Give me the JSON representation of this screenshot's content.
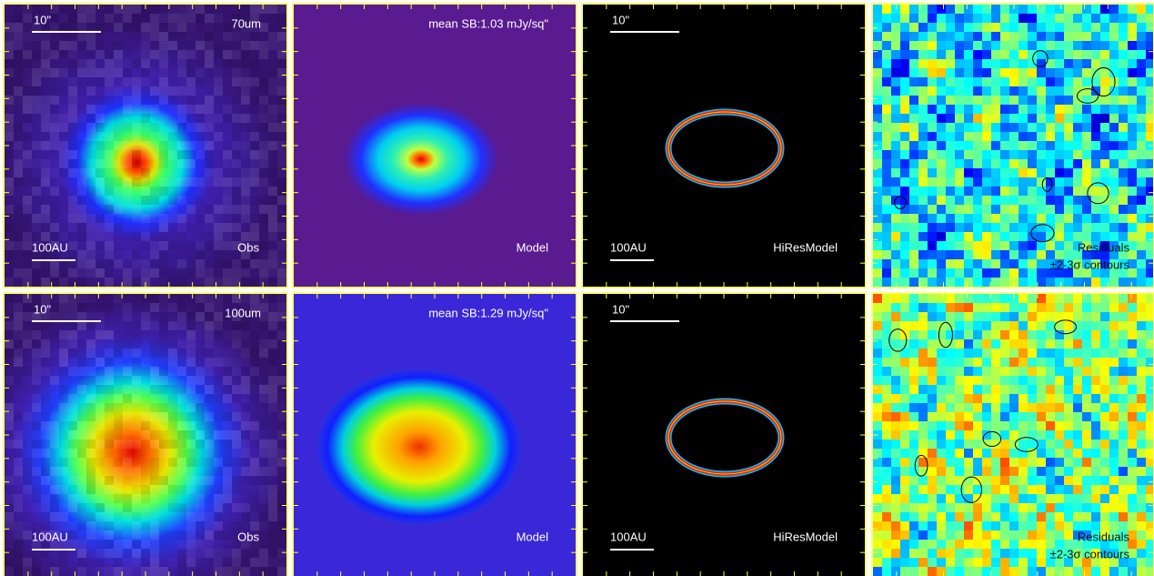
{
  "rows": [
    {
      "band": "70um",
      "scale_arcsec": "10\"",
      "scale_au": "100AU",
      "obs_label": "Obs",
      "mean_sb": "mean SB:1.03 mJy/sq\"",
      "model_label": "Model",
      "hires_scale_arcsec": "10\"",
      "hires_scale_au": "100AU",
      "hires_label": "HiResModel",
      "residuals_label": "Residuals",
      "contours_label": "±2-3σ contours"
    },
    {
      "band": "100um",
      "scale_arcsec": "10\"",
      "scale_au": "100AU",
      "obs_label": "Obs",
      "mean_sb": "mean SB:1.29 mJy/sq\"",
      "model_label": "Model",
      "hires_scale_arcsec": "10\"",
      "hires_scale_au": "100AU",
      "hires_label": "HiResModel",
      "residuals_label": "Residuals",
      "contours_label": "±2-3σ contours"
    }
  ]
}
